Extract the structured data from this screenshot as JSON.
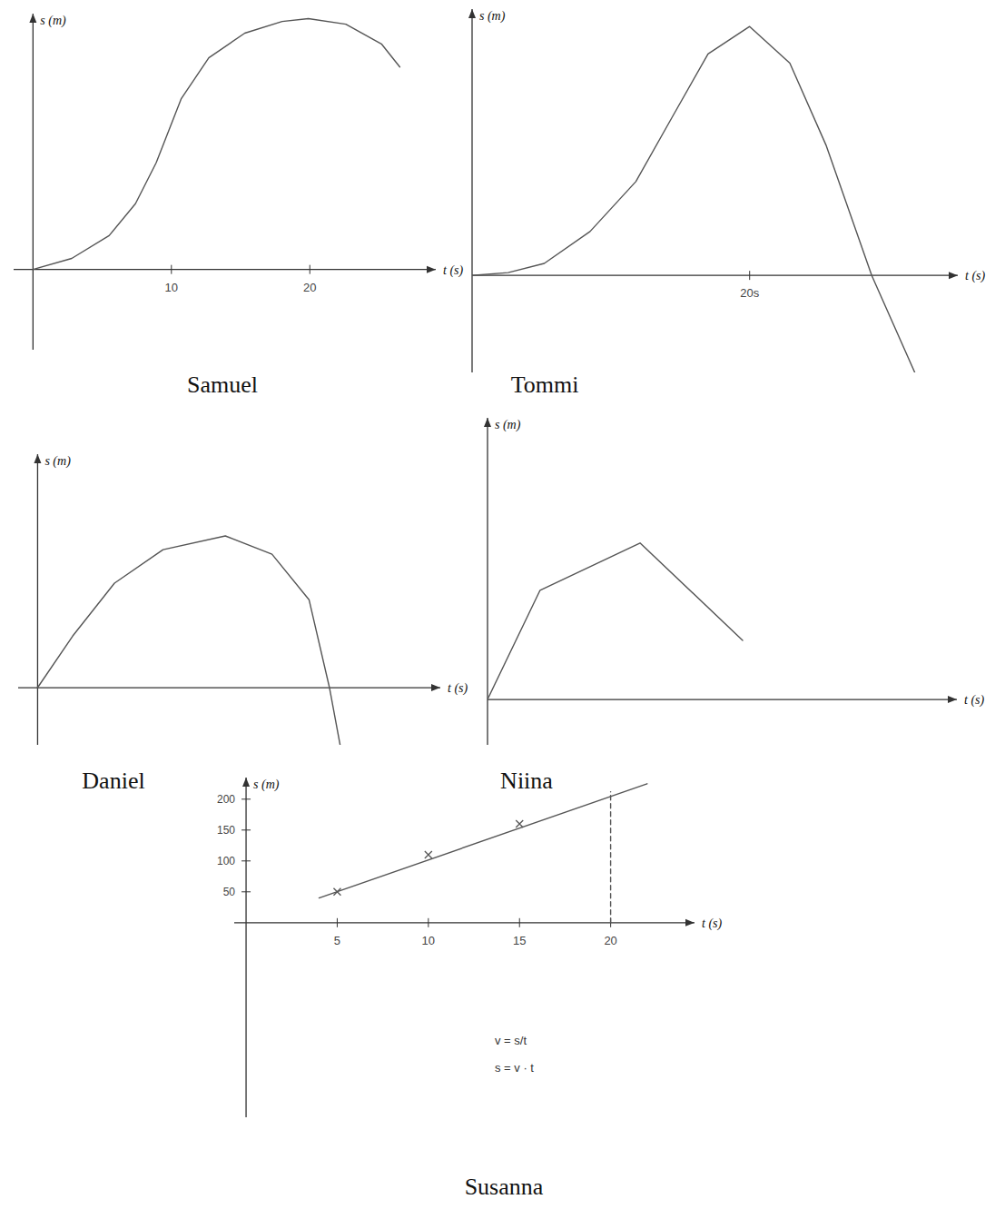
{
  "chart_data": [
    {
      "type": "line",
      "title": "Samuel",
      "x_label": "t (s)",
      "y_label": "s (m)",
      "xlim": [
        -1.4,
        29.1
      ],
      "ylim": [
        -32,
        102
      ],
      "xticks": [
        10,
        20
      ],
      "yticks": [],
      "tick_labels": "x",
      "series": [
        {
          "color": "#555555",
          "line_style": "solid",
          "marker": "none",
          "x": [
            0,
            2.8,
            5.5,
            7.4,
            8.9,
            10.7,
            12.7,
            15.3,
            18,
            19.9,
            22.6,
            25.2,
            26.5
          ],
          "values": [
            0,
            4.4,
            13.5,
            26.2,
            42.5,
            68,
            84.4,
            94.2,
            98.9,
            100,
            97.8,
            89.8,
            80.7
          ]
        }
      ]
    },
    {
      "type": "line",
      "title": "Tommi",
      "x_label": "t (s)",
      "y_label": "s (m)",
      "xlim": [
        0,
        35
      ],
      "ylim": [
        -39,
        107
      ],
      "xticks": [
        {
          "value": 20,
          "label": "20s"
        }
      ],
      "yticks": [],
      "tick_labels": "x",
      "series": [
        {
          "color": "#555555",
          "line_style": "solid",
          "marker": "none",
          "x": [
            0,
            2.6,
            5.2,
            8.5,
            11.8,
            14.4,
            17,
            20,
            22.9,
            25.5,
            28.8,
            31.9
          ],
          "values": [
            0,
            1.1,
            4.8,
            17.6,
            37.7,
            63.4,
            89,
            100,
            85.3,
            52.4,
            0,
            -39
          ]
        }
      ]
    },
    {
      "type": "line",
      "title": "Daniel",
      "x_label": "t (s)",
      "y_label": "s (m)",
      "xlim": [
        -2,
        41.4
      ],
      "ylim": [
        -37.7,
        153.9
      ],
      "xticks": [],
      "yticks": [],
      "tick_labels": false,
      "series": [
        {
          "color": "#555555",
          "line_style": "solid",
          "marker": "none",
          "x": [
            0,
            3.6,
            7.9,
            12.9,
            19.3,
            24.1,
            27.9,
            30,
            31.1
          ],
          "values": [
            0,
            34,
            68.9,
            91,
            100,
            88,
            58,
            0,
            -37.7
          ]
        }
      ]
    },
    {
      "type": "line",
      "title": "Niina",
      "x_label": "t (s)",
      "y_label": "s (m)",
      "xlim": [
        0,
        92
      ],
      "ylim": [
        -29,
        180
      ],
      "xticks": [],
      "yticks": [],
      "tick_labels": false,
      "series": [
        {
          "color": "#555555",
          "line_style": "solid",
          "marker": "none",
          "x": [
            0,
            10.3,
            29.9,
            50
          ],
          "values": [
            0,
            69.8,
            100,
            37.8
          ]
        }
      ]
    },
    {
      "type": "line",
      "title": "Susanna",
      "x_label": "t (s)",
      "y_label": "s (m)",
      "xlim": [
        -0.65,
        24.6
      ],
      "ylim": [
        -315,
        235
      ],
      "xticks": [
        5,
        10,
        15,
        20
      ],
      "yticks": [
        50,
        100,
        150,
        200
      ],
      "tick_labels": true,
      "annotations": [
        "v = s/t",
        "s = v · t"
      ],
      "series": [
        {
          "type": "line",
          "color": "#555555",
          "line_style": "solid",
          "marker": "none",
          "x": [
            4,
            22
          ],
          "values": [
            40,
            225
          ]
        },
        {
          "type": "scatter",
          "color": "#555555",
          "marker": "x",
          "x": [
            5,
            10,
            15
          ],
          "values": [
            50,
            110,
            160
          ]
        },
        {
          "type": "line",
          "color": "#555555",
          "line_style": "dashed",
          "marker": "none",
          "x": [
            20,
            20
          ],
          "values": [
            0,
            212
          ]
        }
      ]
    }
  ]
}
